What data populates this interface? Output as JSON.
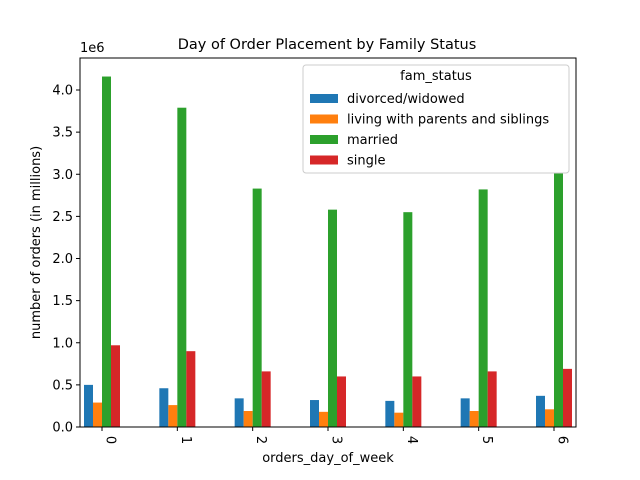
{
  "chart_data": {
    "type": "bar",
    "title": "Day of Order Placement by Family Status",
    "xlabel": "orders_day_of_week",
    "ylabel": "number of orders (in millions)",
    "offset_text": "1e6",
    "categories": [
      "0",
      "1",
      "2",
      "3",
      "4",
      "5",
      "6"
    ],
    "ylim": [
      0,
      4.38
    ],
    "yticks": [
      0.0,
      0.5,
      1.0,
      1.5,
      2.0,
      2.5,
      3.0,
      3.5,
      4.0
    ],
    "ytick_labels": [
      "0.0",
      "0.5",
      "1.0",
      "1.5",
      "2.0",
      "2.5",
      "3.0",
      "3.5",
      "4.0"
    ],
    "legend": {
      "title": "fam_status",
      "placement": "top-right"
    },
    "grid": false,
    "series": [
      {
        "name": "divorced/widowed",
        "color": "#1f77b4",
        "values": [
          0.5,
          0.46,
          0.34,
          0.32,
          0.31,
          0.34,
          0.37
        ]
      },
      {
        "name": "living with parents and siblings",
        "color": "#ff7f0e",
        "values": [
          0.29,
          0.26,
          0.19,
          0.18,
          0.17,
          0.19,
          0.21
        ]
      },
      {
        "name": "married",
        "color": "#2ca02c",
        "values": [
          4.16,
          3.79,
          2.83,
          2.58,
          2.55,
          2.82,
          3.01
        ]
      },
      {
        "name": "single",
        "color": "#d62728",
        "values": [
          0.97,
          0.9,
          0.66,
          0.6,
          0.6,
          0.66,
          0.69
        ]
      }
    ]
  }
}
